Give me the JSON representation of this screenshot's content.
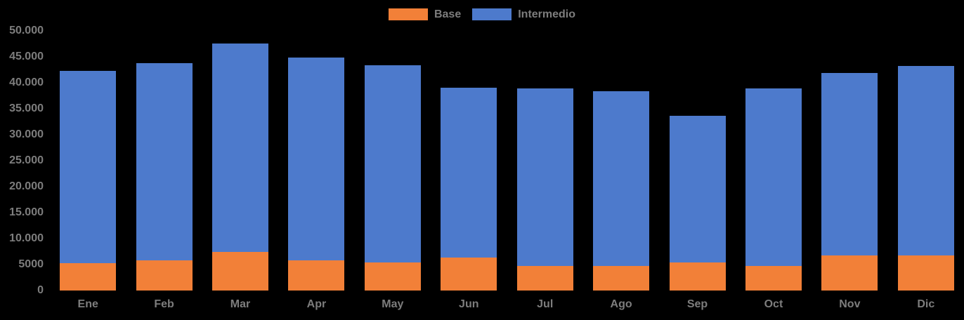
{
  "app": {
    "background_color": "#000000",
    "label_text_color": "#7d7d7d"
  },
  "chart_data": {
    "type": "bar",
    "stacked": true,
    "title": "",
    "xlabel": "",
    "ylabel": "",
    "categories": [
      "Ene",
      "Feb",
      "Mar",
      "Apr",
      "May",
      "Jun",
      "Jul",
      "Ago",
      "Sep",
      "Oct",
      "Nov",
      "Dic"
    ],
    "series": [
      {
        "name": "Base",
        "color": "#F28038",
        "values": [
          5300,
          5800,
          7400,
          5800,
          5400,
          6400,
          4700,
          4700,
          5400,
          4700,
          6800,
          6800
        ]
      },
      {
        "name": "Intermedio",
        "color": "#4D7ACC",
        "values": [
          37000,
          38000,
          40200,
          39100,
          38000,
          32600,
          34200,
          33700,
          28300,
          34200,
          35100,
          36500
        ]
      }
    ],
    "stack_totals": [
      42300,
      43800,
      47600,
      44900,
      43400,
      39000,
      38900,
      38400,
      33700,
      38900,
      41900,
      43300
    ],
    "ylim": [
      0,
      50000
    ],
    "ytick_interval": 5000,
    "yticks": [
      {
        "value": 0,
        "label": "0"
      },
      {
        "value": 5000,
        "label": "5000"
      },
      {
        "value": 10000,
        "label": "10.000"
      },
      {
        "value": 15000,
        "label": "15.000"
      },
      {
        "value": 20000,
        "label": "20.000"
      },
      {
        "value": 25000,
        "label": "25.000"
      },
      {
        "value": 30000,
        "label": "30.000"
      },
      {
        "value": 35000,
        "label": "35.000"
      },
      {
        "value": 40000,
        "label": "40.000"
      },
      {
        "value": 45000,
        "label": "45.000"
      },
      {
        "value": 50000,
        "label": "50.000"
      }
    ],
    "grid": false,
    "legend_position": "top-center"
  }
}
